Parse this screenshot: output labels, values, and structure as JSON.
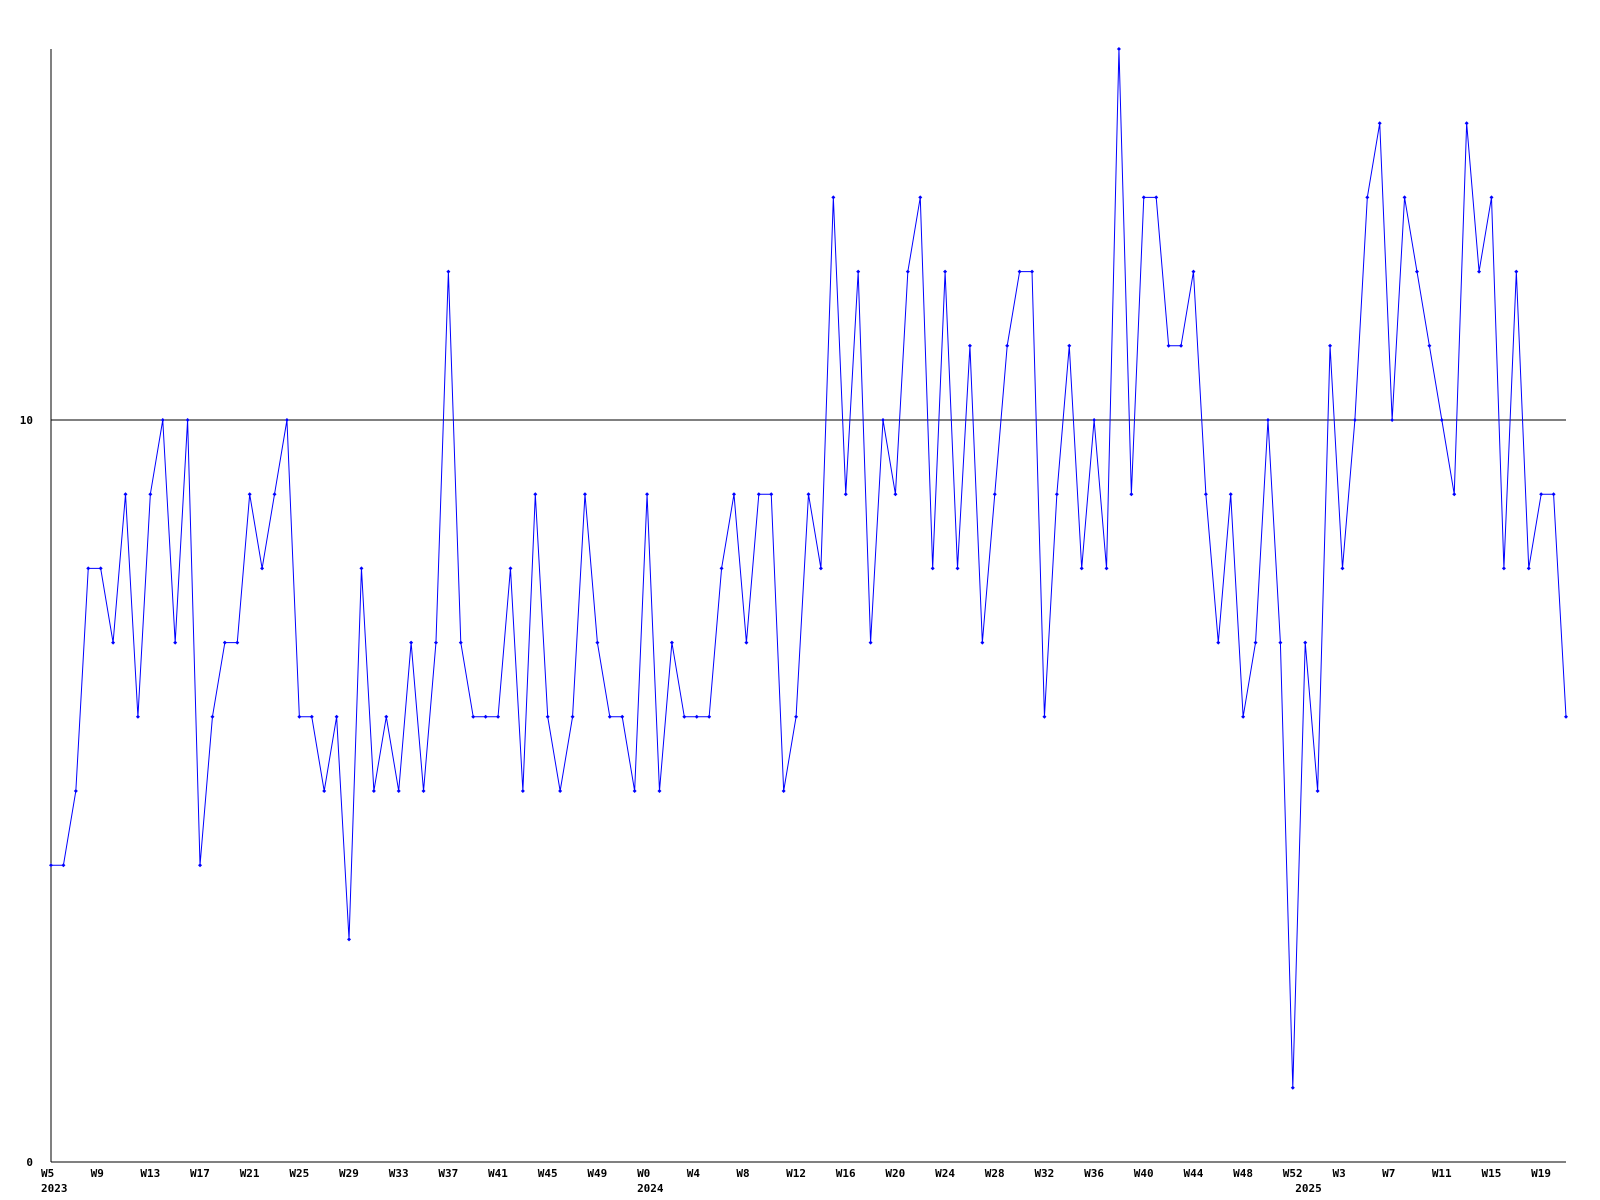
{
  "chart_data": {
    "type": "line",
    "categories": [
      "W5",
      null,
      null,
      null,
      "W9",
      null,
      null,
      null,
      "W13",
      null,
      null,
      null,
      "W17",
      null,
      null,
      null,
      "W21",
      null,
      null,
      null,
      "W25",
      null,
      null,
      null,
      "W29",
      null,
      null,
      null,
      "W33",
      null,
      null,
      null,
      "W37",
      null,
      null,
      null,
      "W41",
      null,
      null,
      null,
      "W45",
      null,
      null,
      null,
      "W49",
      null,
      null,
      null,
      "W0",
      null,
      null,
      null,
      "W4",
      null,
      null,
      null,
      "W8",
      null,
      null,
      null,
      "W12",
      null,
      null,
      null,
      "W16",
      null,
      null,
      null,
      "W20",
      null,
      null,
      null,
      "W24",
      null,
      null,
      null,
      "W28",
      null,
      null,
      null,
      "W32",
      null,
      null,
      null,
      "W36",
      null,
      null,
      null,
      "W40",
      null,
      null,
      null,
      "W44",
      null,
      null,
      null,
      "W48",
      null,
      null,
      null,
      "W52",
      null,
      null,
      null,
      "W3",
      null,
      null,
      null,
      "W7",
      null,
      null,
      null,
      "W11",
      null,
      null,
      null,
      "W15",
      null,
      null,
      null,
      "W19",
      null,
      null
    ],
    "years": [
      "2023",
      null,
      null,
      null,
      null,
      null,
      null,
      null,
      null,
      null,
      null,
      null,
      null,
      null,
      null,
      null,
      null,
      null,
      null,
      null,
      null,
      null,
      null,
      null,
      null,
      null,
      null,
      null,
      null,
      null,
      null,
      null,
      null,
      null,
      null,
      null,
      null,
      null,
      null,
      null,
      null,
      null,
      null,
      null,
      null,
      null,
      null,
      null,
      "2024",
      null,
      null,
      null,
      null,
      null,
      null,
      null,
      null,
      null,
      null,
      null,
      null,
      null,
      null,
      null,
      null,
      null,
      null,
      null,
      null,
      null,
      null,
      null,
      null,
      null,
      null,
      null,
      null,
      null,
      null,
      null,
      null,
      null,
      null,
      null,
      null,
      null,
      null,
      null,
      null,
      null,
      null,
      null,
      null,
      null,
      null,
      null,
      null,
      null,
      null,
      null,
      null,
      "2025",
      null,
      null,
      null,
      null,
      null,
      null,
      null,
      null,
      null,
      null,
      null,
      null,
      null,
      null,
      null,
      null,
      null,
      null,
      null,
      null,
      null
    ],
    "series": [
      {
        "color": "#0000ff",
        "values": [
          4,
          4,
          5,
          8,
          8,
          7,
          9,
          6,
          9,
          10,
          7,
          10,
          4,
          6,
          7,
          7,
          9,
          8,
          9,
          10,
          6,
          6,
          5,
          6,
          3,
          8,
          5,
          6,
          5,
          7,
          5,
          7,
          12,
          7,
          6,
          6,
          6,
          8,
          5,
          9,
          6,
          5,
          6,
          9,
          7,
          6,
          6,
          5,
          9,
          5,
          7,
          6,
          6,
          6,
          8,
          9,
          7,
          9,
          9,
          5,
          6,
          9,
          8,
          13,
          9,
          12,
          7,
          10,
          9,
          12,
          13,
          8,
          12,
          8,
          11,
          7,
          9,
          11,
          12,
          12,
          6,
          9,
          11,
          8,
          10,
          8,
          15,
          9,
          13,
          13,
          11,
          11,
          12,
          9,
          7,
          9,
          6,
          7,
          10,
          7,
          1,
          7,
          5,
          11,
          8,
          10,
          13,
          14,
          10,
          13,
          12,
          11,
          10,
          9,
          14,
          12,
          13,
          8,
          12,
          8,
          9,
          9,
          6
        ]
      }
    ],
    "ylim": [
      0,
      15
    ],
    "yticks": [
      0,
      10
    ],
    "grid": true
  }
}
